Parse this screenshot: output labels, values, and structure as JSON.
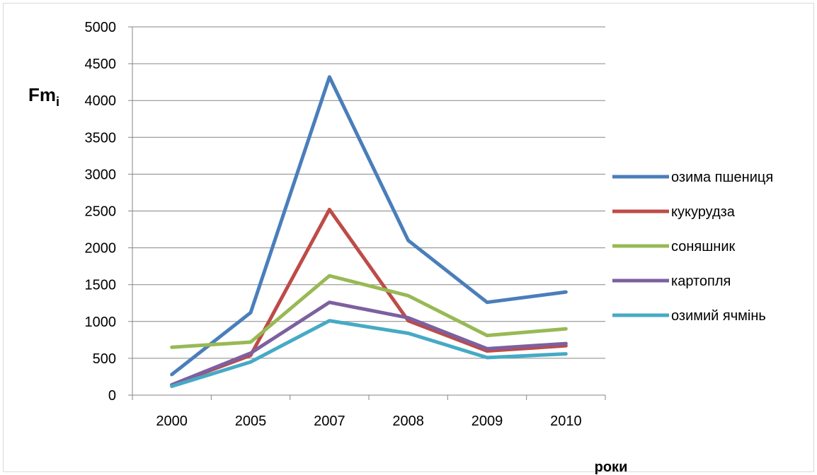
{
  "chart_data": {
    "type": "line",
    "categories": [
      "2000",
      "2005",
      "2007",
      "2008",
      "2009",
      "2010"
    ],
    "ylabel": "Fm",
    "ylabel_subscript": "i",
    "xlabel": "роки",
    "ylim": [
      0,
      5000
    ],
    "yticks": [
      "0",
      "500",
      "1000",
      "1500",
      "2000",
      "2500",
      "3000",
      "3500",
      "4000",
      "4500",
      "5000"
    ],
    "grid": "horizontal",
    "legend_position": "right",
    "series": [
      {
        "name": "озима пшениця",
        "color": "#4a7ebb",
        "values": [
          280,
          1120,
          4320,
          2100,
          1260,
          1400
        ]
      },
      {
        "name": "кукурудза",
        "color": "#be4b48",
        "values": [
          140,
          540,
          2520,
          1010,
          600,
          670
        ]
      },
      {
        "name": "соняшник",
        "color": "#98b954",
        "values": [
          650,
          720,
          1620,
          1350,
          810,
          900
        ]
      },
      {
        "name": "картопля",
        "color": "#7d60a0",
        "values": [
          140,
          570,
          1260,
          1050,
          630,
          700
        ]
      },
      {
        "name": "озимий ячмінь",
        "color": "#46aac5",
        "values": [
          120,
          450,
          1010,
          840,
          510,
          560
        ]
      }
    ]
  }
}
